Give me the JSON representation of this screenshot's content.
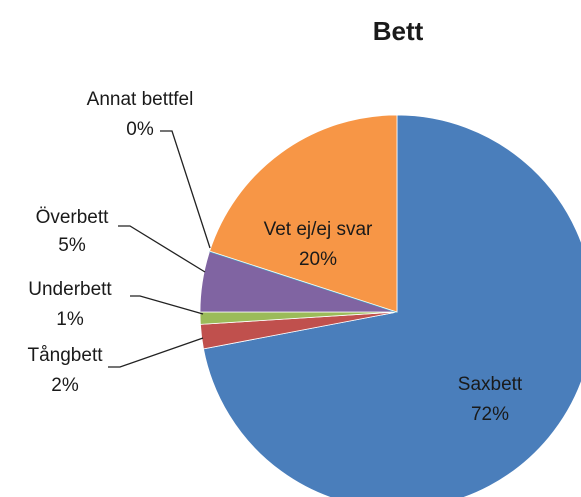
{
  "chart_data": {
    "type": "pie",
    "title": "Bett",
    "categories": [
      "Saxbett",
      "Tångbett",
      "Underbett",
      "Överbett",
      "Annat bettfel",
      "Vet ej/ej svar"
    ],
    "values": [
      72,
      2,
      1,
      5,
      0,
      20
    ],
    "value_labels": [
      "72%",
      "2%",
      "1%",
      "5%",
      "0%",
      "20%"
    ],
    "colors": [
      "#4a7ebb",
      "#c0504d",
      "#9bbb59",
      "#8064a2",
      "#4bacc6",
      "#f79646"
    ]
  }
}
